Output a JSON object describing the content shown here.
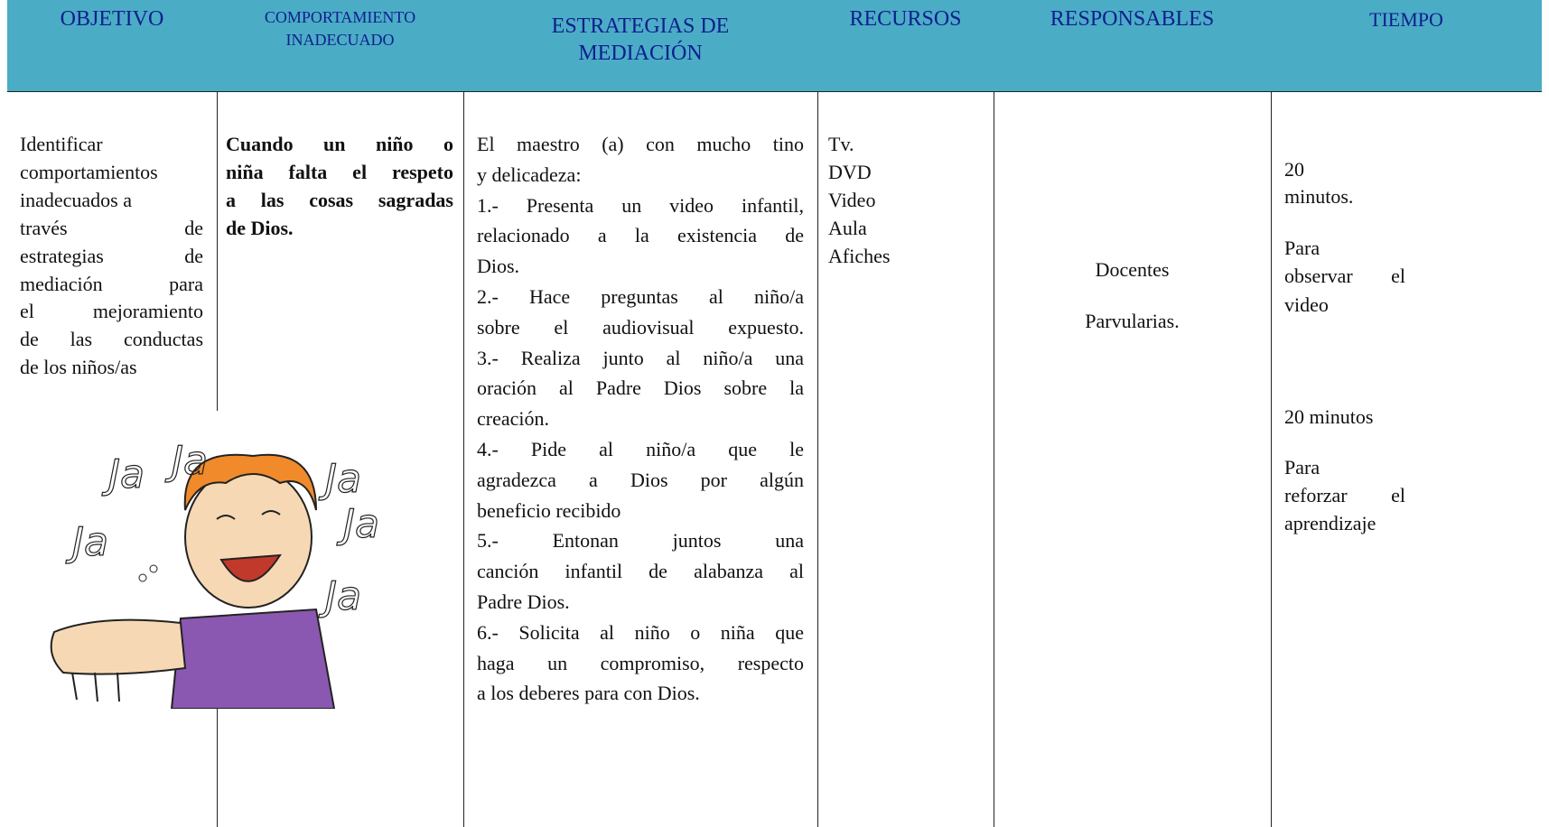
{
  "header": {
    "columns": [
      [
        "OBJETIVO"
      ],
      [
        "COMPORTAMIENTO",
        "INADECUADO"
      ],
      [
        "ESTRATEGIAS DE",
        "MEDIACIÓN"
      ],
      [
        "RECURSOS"
      ],
      [
        "RESPONSABLES"
      ],
      [
        "TIEMPO"
      ]
    ]
  },
  "row": {
    "objetivo": [
      "Identificar",
      "comportamientos",
      "inadecuados a",
      "través de",
      "estrategias de",
      "mediación para",
      "el mejoramiento",
      "de las conductas",
      "de los niños/as"
    ],
    "comportamiento": [
      "Cuando un niño o",
      "niña falta el respeto",
      "a las cosas sagradas",
      "de Dios."
    ],
    "estrategias": [
      "El maestro (a) con mucho tino",
      "y delicadeza:",
      "1.- Presenta un video infantil,",
      "relacionado a la existencia de",
      "Dios.",
      "2.- Hace preguntas al niño/a",
      "sobre el audiovisual expuesto.",
      "3.- Realiza junto al niño/a una",
      "oración al Padre Dios sobre la",
      "creación.",
      "4.- Pide al niño/a que le",
      "agradezca a Dios por algún",
      "beneficio recibido",
      "5.- Entonan juntos una",
      "canción infantil de alabanza al",
      "Padre Dios.",
      "6.- Solicita al niño o niña que",
      "haga un compromiso, respecto",
      "a los deberes para con Dios."
    ],
    "recursos": [
      "Tv.",
      "DVD",
      "Video",
      "Aula",
      "Afiches"
    ],
    "responsables": [
      "Docentes",
      "Parvularias."
    ],
    "tiempo": [
      "20",
      "minutos.",
      "Para",
      "observar el",
      "video",
      "20 minutos",
      "Para",
      "reforzar el",
      "aprendizaje"
    ]
  },
  "illustration": {
    "texts": [
      "Ja",
      "Ja",
      "Ja",
      "Ja",
      "Ja",
      "Ja"
    ]
  }
}
